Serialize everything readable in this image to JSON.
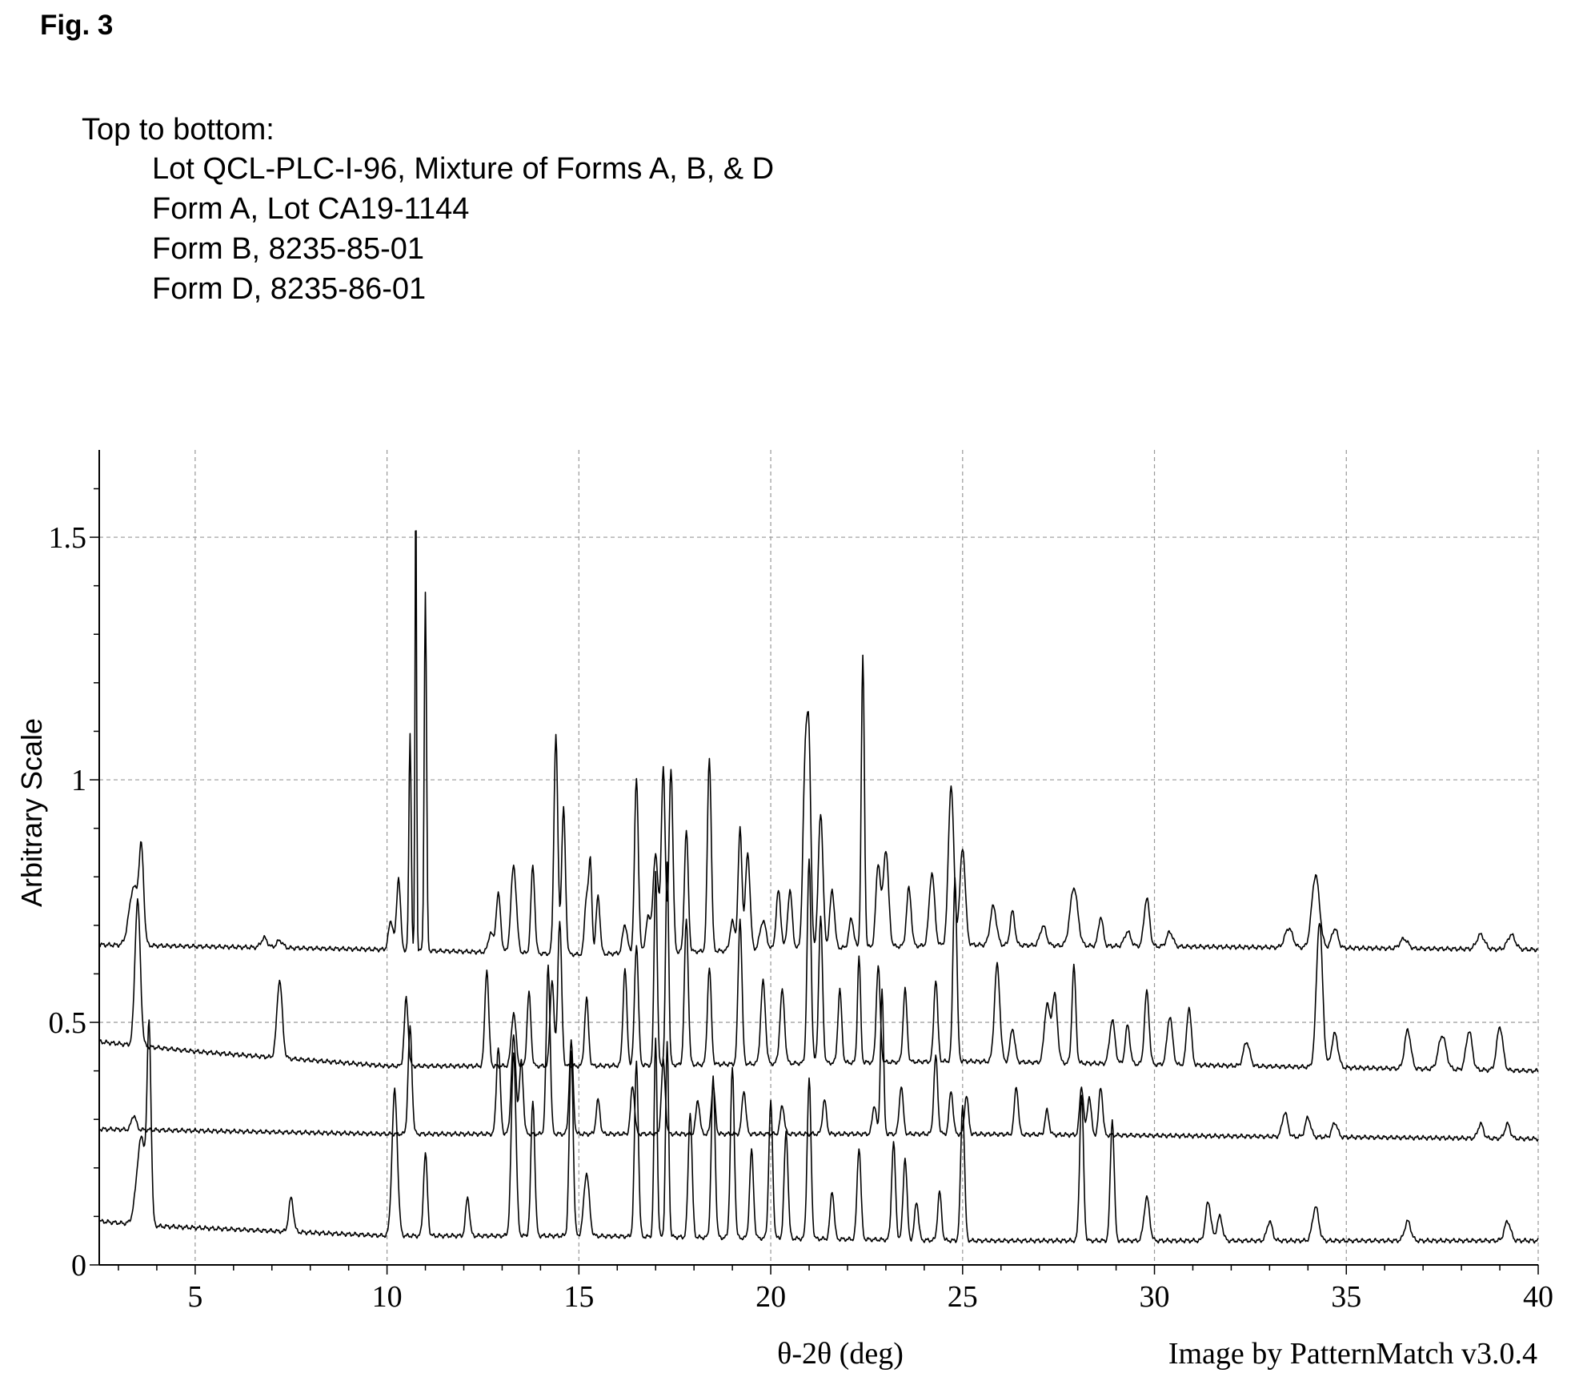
{
  "figure": {
    "label": "Fig. 3",
    "legend_header": "Top to bottom:",
    "legend_items": [
      "Lot QCL-PLC-I-96, Mixture of Forms A, B, & D",
      "Form A, Lot CA19-1144",
      "Form B, 8235-85-01",
      "Form D, 8235-86-01"
    ],
    "credit": "Image by PatternMatch v3.0.4"
  },
  "chart_data": {
    "type": "line",
    "xlabel": "θ-2θ (deg)",
    "ylabel": "Arbitrary Scale",
    "xlim": [
      2.5,
      40
    ],
    "ylim": [
      0,
      1.68
    ],
    "xticks": [
      5,
      10,
      15,
      20,
      25,
      30,
      35,
      40
    ],
    "yticks": [
      0,
      0.5,
      1,
      1.5
    ],
    "ytick_labels": [
      "0",
      "0.5",
      "1",
      "1.5"
    ],
    "grid": true,
    "line_color": "#000000",
    "series": [
      {
        "name": "Lot QCL-PLC-I-96, Mixture of Forms A, B, & D",
        "baseline": [
          [
            2.5,
            0.66
          ],
          [
            10,
            0.65
          ],
          [
            15,
            0.64
          ],
          [
            25,
            0.66
          ],
          [
            40,
            0.65
          ]
        ],
        "peaks": [
          [
            3.4,
            0.12,
            0.12
          ],
          [
            3.6,
            0.18,
            0.06
          ],
          [
            6.8,
            0.02,
            0.08
          ],
          [
            7.2,
            0.015,
            0.08
          ],
          [
            10.1,
            0.06,
            0.06
          ],
          [
            10.3,
            0.15,
            0.05
          ],
          [
            10.6,
            0.45,
            0.03
          ],
          [
            10.75,
            0.98,
            0.02
          ],
          [
            11.0,
            0.74,
            0.03
          ],
          [
            12.7,
            0.04,
            0.06
          ],
          [
            12.9,
            0.12,
            0.06
          ],
          [
            13.3,
            0.18,
            0.07
          ],
          [
            13.8,
            0.18,
            0.05
          ],
          [
            14.4,
            0.45,
            0.05
          ],
          [
            14.6,
            0.3,
            0.05
          ],
          [
            15.2,
            0.12,
            0.05
          ],
          [
            15.3,
            0.18,
            0.04
          ],
          [
            15.5,
            0.12,
            0.05
          ],
          [
            16.2,
            0.06,
            0.06
          ],
          [
            16.5,
            0.36,
            0.05
          ],
          [
            16.8,
            0.07,
            0.06
          ],
          [
            17.0,
            0.2,
            0.07
          ],
          [
            17.2,
            0.38,
            0.05
          ],
          [
            17.4,
            0.38,
            0.05
          ],
          [
            17.8,
            0.25,
            0.05
          ],
          [
            18.4,
            0.4,
            0.05
          ],
          [
            19.0,
            0.06,
            0.06
          ],
          [
            19.2,
            0.25,
            0.05
          ],
          [
            19.4,
            0.2,
            0.06
          ],
          [
            19.8,
            0.06,
            0.08
          ],
          [
            20.2,
            0.12,
            0.06
          ],
          [
            20.5,
            0.12,
            0.06
          ],
          [
            20.9,
            0.38,
            0.06
          ],
          [
            21.0,
            0.36,
            0.05
          ],
          [
            21.3,
            0.28,
            0.06
          ],
          [
            21.6,
            0.12,
            0.06
          ],
          [
            22.1,
            0.06,
            0.06
          ],
          [
            22.4,
            0.6,
            0.04
          ],
          [
            22.8,
            0.17,
            0.06
          ],
          [
            23.0,
            0.2,
            0.07
          ],
          [
            23.6,
            0.12,
            0.06
          ],
          [
            24.2,
            0.15,
            0.07
          ],
          [
            24.7,
            0.33,
            0.07
          ],
          [
            25.0,
            0.2,
            0.07
          ],
          [
            25.8,
            0.08,
            0.08
          ],
          [
            26.3,
            0.07,
            0.06
          ],
          [
            27.1,
            0.04,
            0.08
          ],
          [
            27.9,
            0.12,
            0.1
          ],
          [
            28.6,
            0.06,
            0.06
          ],
          [
            29.3,
            0.03,
            0.08
          ],
          [
            29.8,
            0.1,
            0.07
          ],
          [
            30.4,
            0.03,
            0.08
          ],
          [
            33.5,
            0.04,
            0.1
          ],
          [
            34.2,
            0.15,
            0.1
          ],
          [
            34.7,
            0.04,
            0.08
          ],
          [
            36.5,
            0.02,
            0.1
          ],
          [
            38.5,
            0.03,
            0.1
          ],
          [
            39.3,
            0.03,
            0.1
          ]
        ]
      },
      {
        "name": "Form A, Lot CA19-1144",
        "baseline": [
          [
            2.5,
            0.46
          ],
          [
            5,
            0.44
          ],
          [
            10,
            0.41
          ],
          [
            15,
            0.41
          ],
          [
            25,
            0.42
          ],
          [
            40,
            0.4
          ]
        ],
        "peaks": [
          [
            3.5,
            0.3,
            0.07
          ],
          [
            7.2,
            0.16,
            0.07
          ],
          [
            10.5,
            0.14,
            0.05
          ],
          [
            12.6,
            0.2,
            0.05
          ],
          [
            13.3,
            0.11,
            0.06
          ],
          [
            13.7,
            0.15,
            0.05
          ],
          [
            14.3,
            0.18,
            0.05
          ],
          [
            14.5,
            0.3,
            0.05
          ],
          [
            15.2,
            0.14,
            0.05
          ],
          [
            16.2,
            0.2,
            0.05
          ],
          [
            16.5,
            0.25,
            0.05
          ],
          [
            17.0,
            0.4,
            0.04
          ],
          [
            17.3,
            0.42,
            0.04
          ],
          [
            17.8,
            0.3,
            0.05
          ],
          [
            18.4,
            0.2,
            0.05
          ],
          [
            19.2,
            0.3,
            0.05
          ],
          [
            19.8,
            0.17,
            0.06
          ],
          [
            20.3,
            0.15,
            0.06
          ],
          [
            21.0,
            0.42,
            0.05
          ],
          [
            21.3,
            0.3,
            0.05
          ],
          [
            21.8,
            0.15,
            0.05
          ],
          [
            22.3,
            0.22,
            0.04
          ],
          [
            22.8,
            0.2,
            0.05
          ],
          [
            23.5,
            0.15,
            0.05
          ],
          [
            24.3,
            0.17,
            0.05
          ],
          [
            24.8,
            0.38,
            0.05
          ],
          [
            25.9,
            0.2,
            0.07
          ],
          [
            26.3,
            0.07,
            0.06
          ],
          [
            27.2,
            0.12,
            0.07
          ],
          [
            27.4,
            0.14,
            0.07
          ],
          [
            27.9,
            0.2,
            0.05
          ],
          [
            28.9,
            0.09,
            0.07
          ],
          [
            29.3,
            0.08,
            0.06
          ],
          [
            29.8,
            0.15,
            0.06
          ],
          [
            30.4,
            0.1,
            0.07
          ],
          [
            30.9,
            0.12,
            0.06
          ],
          [
            32.4,
            0.05,
            0.08
          ],
          [
            34.3,
            0.3,
            0.08
          ],
          [
            34.7,
            0.07,
            0.08
          ],
          [
            36.6,
            0.08,
            0.08
          ],
          [
            37.5,
            0.07,
            0.1
          ],
          [
            38.2,
            0.08,
            0.08
          ],
          [
            39.0,
            0.09,
            0.08
          ]
        ]
      },
      {
        "name": "Form B, 8235-85-01",
        "baseline": [
          [
            2.5,
            0.28
          ],
          [
            10,
            0.27
          ],
          [
            25,
            0.27
          ],
          [
            40,
            0.26
          ]
        ],
        "peaks": [
          [
            3.4,
            0.03,
            0.06
          ],
          [
            10.6,
            0.22,
            0.05
          ],
          [
            12.9,
            0.18,
            0.05
          ],
          [
            13.3,
            0.2,
            0.06
          ],
          [
            13.5,
            0.15,
            0.05
          ],
          [
            14.2,
            0.35,
            0.05
          ],
          [
            14.8,
            0.19,
            0.05
          ],
          [
            15.5,
            0.07,
            0.05
          ],
          [
            16.4,
            0.1,
            0.05
          ],
          [
            17.2,
            0.15,
            0.05
          ],
          [
            18.1,
            0.07,
            0.05
          ],
          [
            18.5,
            0.1,
            0.05
          ],
          [
            19.3,
            0.09,
            0.05
          ],
          [
            20.3,
            0.06,
            0.05
          ],
          [
            21.4,
            0.07,
            0.05
          ],
          [
            22.7,
            0.06,
            0.05
          ],
          [
            22.9,
            0.3,
            0.04
          ],
          [
            23.4,
            0.1,
            0.05
          ],
          [
            24.3,
            0.16,
            0.05
          ],
          [
            24.7,
            0.09,
            0.05
          ],
          [
            25.1,
            0.08,
            0.05
          ],
          [
            26.4,
            0.1,
            0.05
          ],
          [
            27.2,
            0.05,
            0.05
          ],
          [
            28.1,
            0.1,
            0.05
          ],
          [
            28.3,
            0.08,
            0.05
          ],
          [
            28.6,
            0.1,
            0.05
          ],
          [
            33.4,
            0.05,
            0.07
          ],
          [
            34.0,
            0.04,
            0.07
          ],
          [
            34.7,
            0.03,
            0.07
          ],
          [
            38.5,
            0.03,
            0.07
          ],
          [
            39.2,
            0.03,
            0.07
          ]
        ]
      },
      {
        "name": "Form D, 8235-86-01",
        "baseline": [
          [
            2.5,
            0.09
          ],
          [
            4,
            0.08
          ],
          [
            10,
            0.06
          ],
          [
            15,
            0.06
          ],
          [
            25,
            0.05
          ],
          [
            40,
            0.05
          ]
        ],
        "peaks": [
          [
            3.6,
            0.18,
            0.12
          ],
          [
            3.8,
            0.38,
            0.05
          ],
          [
            7.5,
            0.07,
            0.06
          ],
          [
            10.2,
            0.3,
            0.07
          ],
          [
            11.0,
            0.17,
            0.05
          ],
          [
            12.1,
            0.08,
            0.05
          ],
          [
            13.3,
            0.38,
            0.06
          ],
          [
            13.8,
            0.28,
            0.05
          ],
          [
            14.8,
            0.38,
            0.05
          ],
          [
            15.2,
            0.13,
            0.07
          ],
          [
            16.5,
            0.36,
            0.05
          ],
          [
            17.0,
            0.41,
            0.04
          ],
          [
            17.3,
            0.4,
            0.04
          ],
          [
            17.9,
            0.26,
            0.05
          ],
          [
            18.5,
            0.33,
            0.05
          ],
          [
            19.0,
            0.35,
            0.05
          ],
          [
            19.5,
            0.18,
            0.05
          ],
          [
            20.0,
            0.28,
            0.05
          ],
          [
            20.4,
            0.22,
            0.05
          ],
          [
            21.0,
            0.33,
            0.05
          ],
          [
            21.6,
            0.1,
            0.05
          ],
          [
            22.3,
            0.19,
            0.05
          ],
          [
            23.2,
            0.2,
            0.05
          ],
          [
            23.5,
            0.17,
            0.05
          ],
          [
            23.8,
            0.08,
            0.05
          ],
          [
            24.4,
            0.1,
            0.05
          ],
          [
            25.0,
            0.28,
            0.05
          ],
          [
            28.1,
            0.3,
            0.05
          ],
          [
            28.9,
            0.25,
            0.05
          ],
          [
            29.8,
            0.09,
            0.07
          ],
          [
            31.4,
            0.08,
            0.07
          ],
          [
            31.7,
            0.05,
            0.07
          ],
          [
            33.0,
            0.04,
            0.07
          ],
          [
            34.2,
            0.07,
            0.08
          ],
          [
            36.6,
            0.04,
            0.08
          ],
          [
            39.2,
            0.04,
            0.08
          ]
        ]
      }
    ]
  }
}
